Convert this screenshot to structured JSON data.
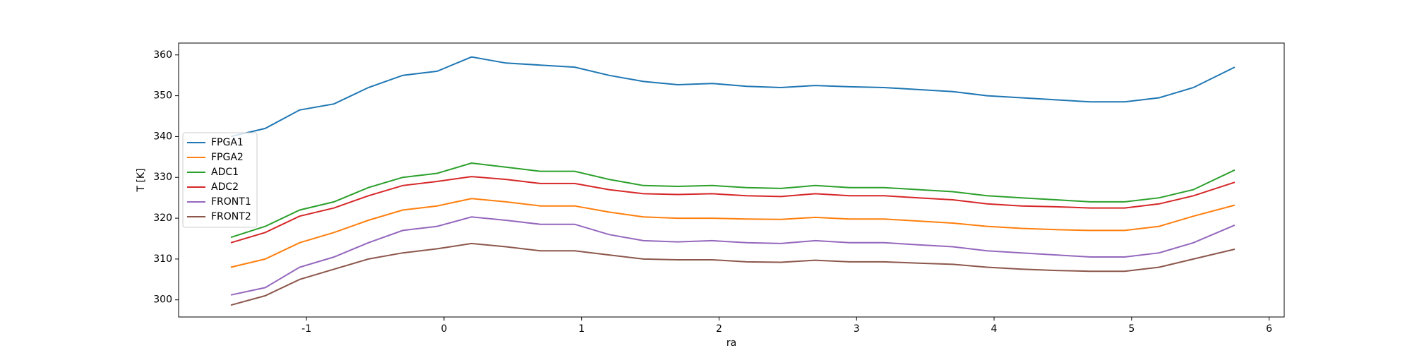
{
  "chart_data": {
    "type": "line",
    "x_label": "ra",
    "y_label": "T [K]",
    "x": [
      -1.55,
      -1.3,
      -1.05,
      -0.8,
      -0.55,
      -0.3,
      -0.05,
      0.2,
      0.45,
      0.7,
      0.95,
      1.2,
      1.45,
      1.7,
      1.95,
      2.2,
      2.45,
      2.7,
      2.95,
      3.2,
      3.45,
      3.7,
      3.95,
      4.2,
      4.45,
      4.7,
      4.95,
      5.2,
      5.45,
      5.75
    ],
    "series": [
      {
        "name": "FPGA1",
        "color": "#1f77b4",
        "values": [
          340,
          342,
          346.5,
          348,
          352,
          355,
          356,
          359.5,
          358,
          357.5,
          357,
          355,
          353.5,
          352.7,
          353,
          352.3,
          352,
          352.5,
          352.2,
          352,
          351.5,
          351,
          350,
          349.5,
          349,
          348.5,
          348.5,
          349.5,
          352,
          357
        ]
      },
      {
        "name": "FPGA2",
        "color": "#ff7f0e",
        "values": [
          308,
          310,
          314,
          316.5,
          319.5,
          322,
          323,
          324.8,
          324,
          323,
          323,
          321.5,
          320.3,
          320,
          320,
          319.8,
          319.7,
          320.2,
          319.8,
          319.8,
          319.3,
          318.8,
          318,
          317.5,
          317.2,
          317,
          317,
          318,
          320.5,
          323.2
        ]
      },
      {
        "name": "ADC1",
        "color": "#2ca02c",
        "values": [
          315.3,
          318,
          322,
          324,
          327.5,
          330,
          331,
          333.5,
          332.5,
          331.5,
          331.5,
          329.5,
          328,
          327.8,
          328,
          327.5,
          327.3,
          328,
          327.5,
          327.5,
          327,
          326.5,
          325.5,
          325,
          324.5,
          324,
          324,
          325,
          327,
          331.8
        ]
      },
      {
        "name": "ADC2",
        "color": "#d62728",
        "values": [
          314,
          316.5,
          320.5,
          322.5,
          325.5,
          328,
          329,
          330.2,
          329.5,
          328.5,
          328.5,
          327,
          326,
          325.8,
          326,
          325.5,
          325.3,
          326,
          325.5,
          325.5,
          325,
          324.5,
          323.5,
          323,
          322.8,
          322.5,
          322.5,
          323.5,
          325.5,
          328.8
        ]
      },
      {
        "name": "FRONT1",
        "color": "#9467bd",
        "values": [
          301.2,
          303,
          308,
          310.5,
          314,
          317,
          318,
          320.3,
          319.5,
          318.5,
          318.5,
          316,
          314.5,
          314.2,
          314.5,
          314,
          313.8,
          314.5,
          314,
          314,
          313.5,
          313,
          312,
          311.5,
          311,
          310.5,
          310.5,
          311.5,
          314,
          318.3
        ]
      },
      {
        "name": "FRONT2",
        "color": "#8c564b",
        "values": [
          298.7,
          301,
          305,
          307.5,
          310,
          311.5,
          312.5,
          313.8,
          313,
          312,
          312,
          311,
          310,
          309.8,
          309.8,
          309.3,
          309.2,
          309.7,
          309.3,
          309.3,
          309,
          308.7,
          308,
          307.5,
          307.2,
          307,
          307,
          308,
          310,
          312.4
        ]
      }
    ],
    "xlim": [
      -1.93,
      6.11
    ],
    "ylim": [
      295.8,
      362.9
    ],
    "xticks": [
      -1,
      0,
      1,
      2,
      3,
      4,
      5,
      6
    ],
    "yticks": [
      300,
      310,
      320,
      330,
      340,
      350,
      360
    ],
    "legend": "center left",
    "grid": false
  }
}
